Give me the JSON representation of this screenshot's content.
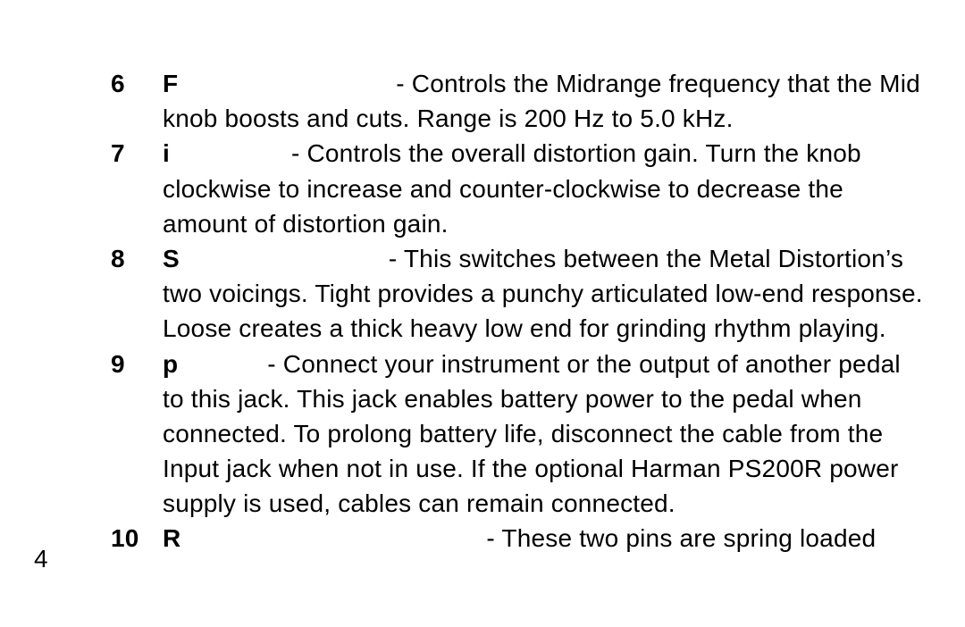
{
  "page_number": "4",
  "items": [
    {
      "num": "6",
      "label": "F",
      "label_padding": 236,
      "text": " - Controls the Midrange frequency that the Mid knob boosts and cuts.  Range is 200 Hz to 5.0 kHz."
    },
    {
      "num": "7",
      "label": "i",
      "label_padding": 128,
      "text": " - Controls the overall distortion gain.  Turn the knob clockwise to increase and counter-clockwise to decrease the amount of distortion gain."
    },
    {
      "num": "8",
      "label": "S",
      "label_padding": 226,
      "text": " - This switches between the Metal Distortion’s two voicings.  Tight provides a punchy articulated low-end response.  Loose creates a thick heavy low end for grinding rhythm playing."
    },
    {
      "num": "9",
      "label": "p",
      "label_padding": 92,
      "text": " - Connect your instrument or the output of another pedal to this jack. This jack enables battery power to the pedal when connected. To prolong battery life, disconnect the cable from the Input jack when not in use. If the optional Harman PS200R power supply is used, cables can remain connected."
    },
    {
      "num": "10",
      "label": "R",
      "label_padding": 334,
      "text": " - These two pins are spring loaded"
    }
  ]
}
